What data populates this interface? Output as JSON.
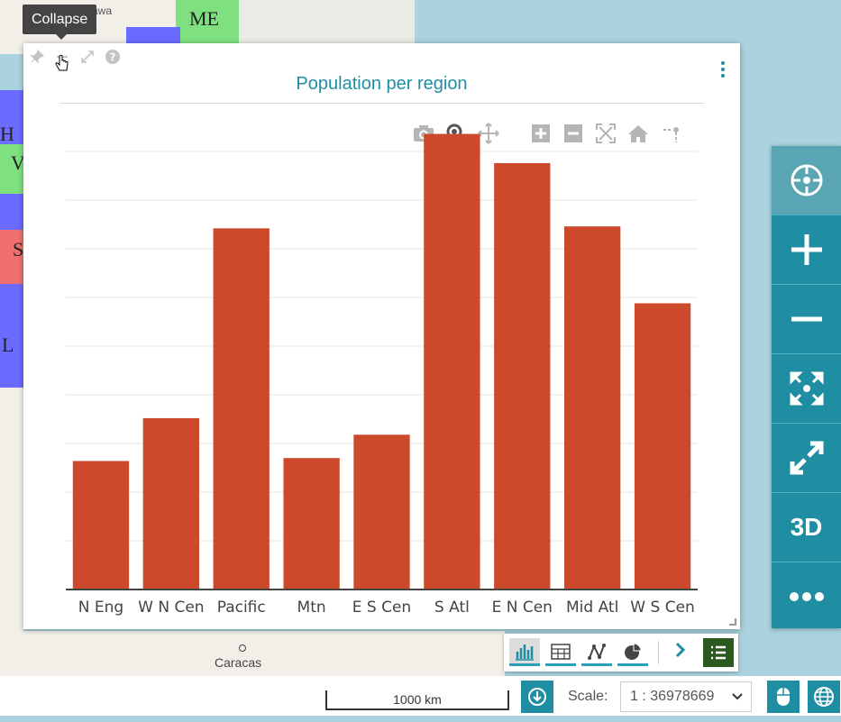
{
  "tooltip": {
    "text": "Collapse"
  },
  "map": {
    "labels": {
      "ottawa": "Ottawa",
      "caracas": "Caracas"
    },
    "state_labels": {
      "me": "ME",
      "h": "H",
      "v": "V",
      "s": "S",
      "l": "L"
    }
  },
  "panel": {
    "title": "Population per region",
    "tools": [
      "pin-icon",
      "collapse-icon",
      "expand-icon",
      "help-icon"
    ],
    "modebar": [
      "camera-icon",
      "zoom-icon",
      "pan-icon",
      "zoom-in-icon",
      "zoom-out-icon",
      "autoscale-icon",
      "reset-home-icon",
      "spike-lines-icon"
    ]
  },
  "chart_data": {
    "type": "bar",
    "title": "Population per region",
    "categories": [
      "N Eng",
      "W N Cen",
      "Pacific",
      "Mtn",
      "E S Cen",
      "S Atl",
      "E N Cen",
      "Mid Atl",
      "W S Cen"
    ],
    "values": [
      13.2,
      17.6,
      37.1,
      13.5,
      15.9,
      46.8,
      43.8,
      37.3,
      29.4
    ],
    "ylim": [
      0,
      45
    ],
    "y_grid_step": 5,
    "grid": true,
    "bar_color": "#cc4a2b"
  },
  "right_toolbar": {
    "buttons": [
      "locate-icon",
      "zoom-in-icon",
      "zoom-out-icon",
      "zoom-extent-icon",
      "fullscreen-icon",
      "3d",
      "more-icon"
    ],
    "three_d_label": "3D"
  },
  "chart_types": {
    "items": [
      "bar-chart-icon",
      "table-icon",
      "line-chart-icon",
      "pie-chart-icon"
    ],
    "selected": "bar-chart-icon"
  },
  "footer": {
    "scalebar_label": "1000 km",
    "scale_label": "Scale:",
    "scale_value": "1 : 36978669"
  },
  "colors": {
    "accent": "#1f8ea3",
    "bar": "#cc4a2b",
    "list_button": "#2b5a1f"
  }
}
